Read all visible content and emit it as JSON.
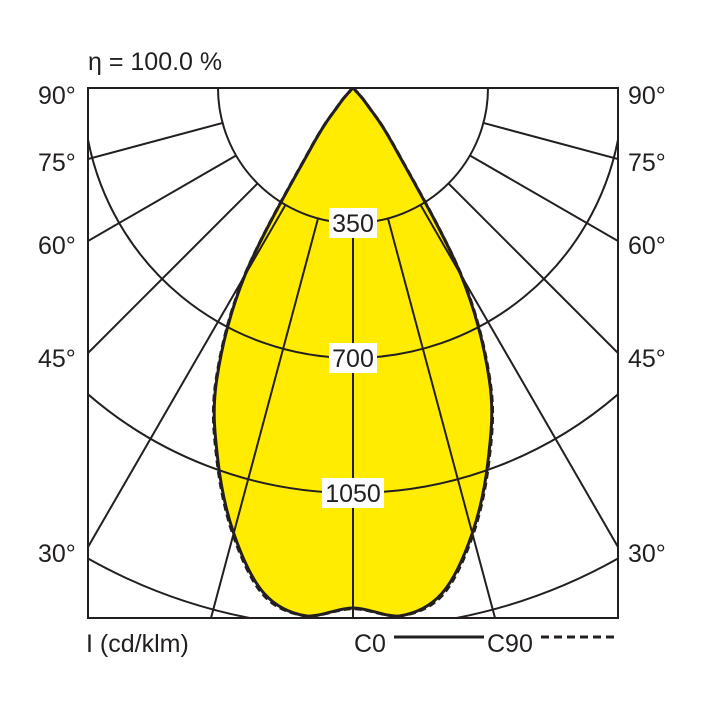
{
  "chart_data": {
    "type": "polar",
    "title": "η = 100.0 %",
    "unit_label": "I (cd/klm)",
    "radial_ticks": [
      350,
      700,
      1050,
      1400
    ],
    "radial_tick_labels": [
      "350",
      "700",
      "1050"
    ],
    "angle_ticks": [
      0,
      15,
      30,
      45,
      60,
      75,
      90
    ],
    "angle_tick_labels": [
      "90°",
      "75°",
      "60°",
      "45°",
      "30°"
    ],
    "fill_color": "#ffec00",
    "series": [
      {
        "name": "C0",
        "style": "solid",
        "angles": [
          0,
          5,
          10,
          15,
          20,
          25,
          30,
          35,
          40,
          45,
          50,
          90
        ],
        "values": [
          1348,
          1385,
          1330,
          1195,
          1025,
          837,
          560,
          190,
          60,
          10,
          0,
          0
        ]
      },
      {
        "name": "C90",
        "style": "dashed",
        "angles": [
          0,
          5,
          10,
          15,
          20,
          25,
          30,
          35,
          40,
          45,
          50,
          90
        ],
        "values": [
          1350,
          1390,
          1335,
          1200,
          1030,
          842,
          565,
          195,
          62,
          10,
          0,
          0
        ]
      }
    ]
  }
}
